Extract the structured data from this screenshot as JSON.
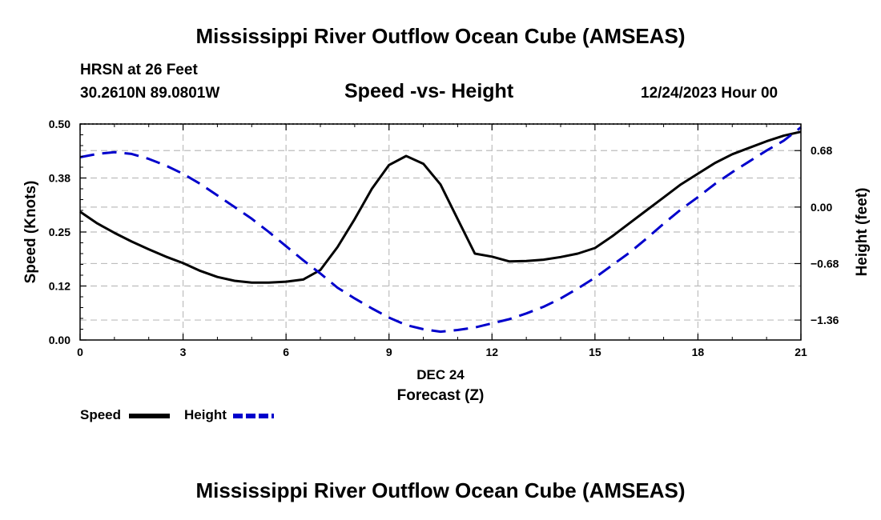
{
  "header": {
    "title": "Mississippi River Outflow Ocean Cube (AMSEAS)",
    "station": "HRSN at 26 Feet",
    "coordinates": "30.2610N  89.0801W",
    "subtitle": "Speed -vs- Height",
    "datetime": "12/24/2023 Hour 00"
  },
  "footer": {
    "title": "Mississippi River Outflow Ocean Cube (AMSEAS)"
  },
  "legend": {
    "speed_label": "Speed",
    "height_label": "Height"
  },
  "chart_data": {
    "type": "line",
    "title": "Speed -vs- Height",
    "xlabel": "Forecast (Z)",
    "xlabel_date": "DEC 24",
    "ylabel": "Speed (Knots)",
    "y2label": "Height (feet)",
    "xlim": [
      0,
      21
    ],
    "ylim": [
      0,
      0.5
    ],
    "y2lim": [
      -1.6,
      1.0
    ],
    "x_ticks": [
      0,
      3,
      6,
      9,
      12,
      15,
      18,
      21
    ],
    "x_tick_labels": [
      "0",
      "3",
      "6",
      "9",
      "12",
      "15",
      "18",
      "21"
    ],
    "y_ticks": [
      0,
      0.125,
      0.25,
      0.375,
      0.5
    ],
    "y_tick_labels": [
      "0.00",
      "0.12",
      "0.25",
      "0.38",
      "0.50"
    ],
    "y2_ticks": [
      0.68,
      0.0,
      -0.68,
      -1.36
    ],
    "y2_tick_labels": [
      "0.68",
      "0.00",
      "−0.68",
      "−1.36"
    ],
    "grid": true,
    "legend_position": "bottom-left",
    "series": [
      {
        "name": "Speed",
        "axis": "left",
        "color": "#000000",
        "dash": "solid",
        "x": [
          0,
          0.5,
          1,
          1.5,
          2,
          2.5,
          3,
          3.5,
          4,
          4.5,
          5,
          5.5,
          6,
          6.5,
          7,
          7.5,
          8,
          8.5,
          9,
          9.5,
          10,
          10.5,
          11,
          11.5,
          12,
          12.5,
          13,
          13.5,
          14,
          14.5,
          15,
          15.5,
          16,
          16.5,
          17,
          17.5,
          18,
          18.5,
          19,
          19.5,
          20,
          20.5,
          21
        ],
        "values": [
          0.297,
          0.27,
          0.248,
          0.228,
          0.21,
          0.193,
          0.178,
          0.16,
          0.146,
          0.137,
          0.133,
          0.133,
          0.135,
          0.14,
          0.162,
          0.215,
          0.28,
          0.35,
          0.405,
          0.426,
          0.408,
          0.36,
          0.28,
          0.2,
          0.193,
          0.182,
          0.183,
          0.186,
          0.192,
          0.2,
          0.213,
          0.24,
          0.27,
          0.3,
          0.33,
          0.36,
          0.385,
          0.41,
          0.43,
          0.445,
          0.46,
          0.473,
          0.482
        ]
      },
      {
        "name": "Height",
        "axis": "right",
        "color": "#0000cc",
        "dash": "dashed",
        "x": [
          0,
          0.5,
          1,
          1.5,
          2,
          2.5,
          3,
          3.5,
          4,
          4.5,
          5,
          5.5,
          6,
          6.5,
          7,
          7.5,
          8,
          8.5,
          9,
          9.5,
          10,
          10.5,
          11,
          11.5,
          12,
          12.5,
          13,
          13.5,
          14,
          14.5,
          15,
          15.5,
          16,
          16.5,
          17,
          17.5,
          18,
          18.5,
          19,
          19.5,
          20,
          20.5,
          21
        ],
        "values": [
          0.6,
          0.64,
          0.66,
          0.64,
          0.58,
          0.5,
          0.4,
          0.28,
          0.14,
          0.0,
          -0.14,
          -0.3,
          -0.47,
          -0.64,
          -0.8,
          -0.97,
          -1.1,
          -1.22,
          -1.33,
          -1.42,
          -1.47,
          -1.5,
          -1.48,
          -1.45,
          -1.4,
          -1.35,
          -1.28,
          -1.2,
          -1.1,
          -0.98,
          -0.85,
          -0.7,
          -0.55,
          -0.38,
          -0.2,
          -0.03,
          0.12,
          0.28,
          0.42,
          0.55,
          0.68,
          0.8,
          0.96
        ]
      }
    ]
  }
}
